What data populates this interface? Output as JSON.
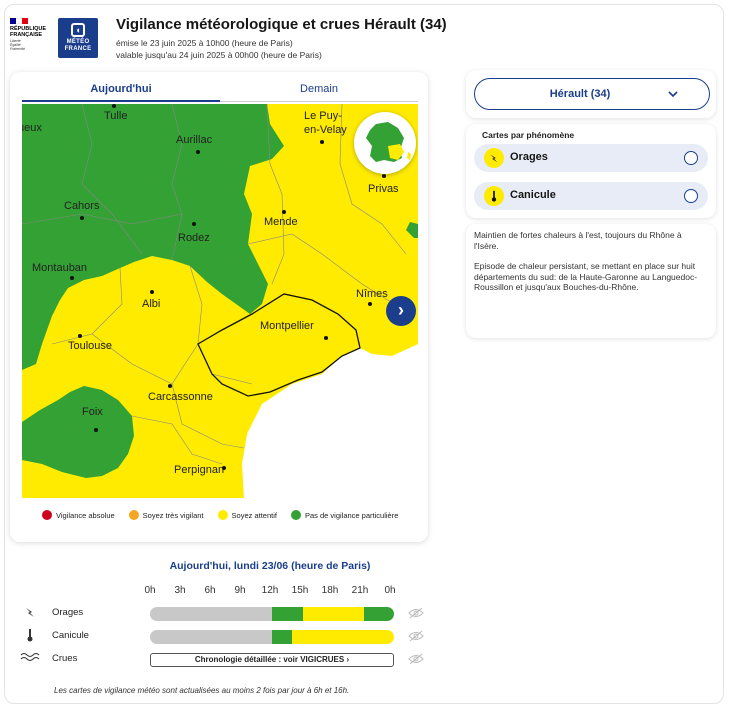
{
  "header": {
    "rf_line1": "RÉPUBLIQUE",
    "rf_line2": "FRANÇAISE",
    "rf_motto1": "Liberté",
    "rf_motto2": "Égalité",
    "rf_motto3": "Fraternité",
    "mf_line1": "MÉTÉO",
    "mf_line2": "FRANCE",
    "title": "Vigilance météorologique et crues Hérault (34)",
    "issued": "émise le 23 juin 2025 à 10h00 (heure de Paris)",
    "valid": "valable jusqu'au 24 juin 2025 à 00h00 (heure de Paris)"
  },
  "map": {
    "tabs": [
      {
        "label": "Aujourd'hui",
        "active": true
      },
      {
        "label": "Demain",
        "active": false
      }
    ],
    "cities": [
      {
        "name": "ueux"
      },
      {
        "name": "Tulle"
      },
      {
        "name": "Aurillac"
      },
      {
        "name": "Le Puy-"
      },
      {
        "name": "en-Velay"
      },
      {
        "name": "Privas"
      },
      {
        "name": "Cahors"
      },
      {
        "name": "Rodez"
      },
      {
        "name": "Mende"
      },
      {
        "name": "Montauban"
      },
      {
        "name": "Albi"
      },
      {
        "name": "Nîmes"
      },
      {
        "name": "Montpellier"
      },
      {
        "name": "Toulouse"
      },
      {
        "name": "Carcassonne"
      },
      {
        "name": "Foix"
      },
      {
        "name": "Perpignan"
      }
    ],
    "colors": {
      "green": "#33a134",
      "yellow": "#ffeb00",
      "orange": "#f5a623",
      "red": "#d0021b",
      "sea": "#ffffff"
    },
    "next_icon": "chevron-right-icon",
    "legend": [
      {
        "label": "Vigilance absolue",
        "color": "#d0021b"
      },
      {
        "label": "Soyez très vigilant",
        "color": "#f5a623"
      },
      {
        "label": "Soyez attentif",
        "color": "#ffeb00"
      },
      {
        "label": "Pas de vigilance particulière",
        "color": "#33a134"
      }
    ]
  },
  "timeline": {
    "title": "Aujourd'hui, lundi 23/06 (heure de Paris)",
    "hours": [
      "0h",
      "3h",
      "6h",
      "9h",
      "12h",
      "15h",
      "18h",
      "21h",
      "0h"
    ],
    "rows": [
      {
        "label": "Orages",
        "icon": "lightning-icon",
        "segments": [
          {
            "color": "#c8c8c8",
            "hours": 12
          },
          {
            "color": "#33a134",
            "hours": 3
          },
          {
            "color": "#ffeb00",
            "hours": 6
          },
          {
            "color": "#33a134",
            "hours": 3
          }
        ]
      },
      {
        "label": "Canicule",
        "icon": "thermometer-icon",
        "segments": [
          {
            "color": "#c8c8c8",
            "hours": 12
          },
          {
            "color": "#33a134",
            "hours": 2
          },
          {
            "color": "#ffeb00",
            "hours": 10
          }
        ]
      },
      {
        "label": "Crues",
        "icon": "waves-icon",
        "chrono_label": "Chronologie détaillée : voir  VIGICRUES  ›"
      }
    ]
  },
  "footnote": "Les cartes de vigilance météo sont actualisées au moins 2 fois par jour à 6h et 16h.",
  "sidebar": {
    "department": "Hérault (34)",
    "phen_title": "Cartes par phénomène",
    "phenomena": [
      {
        "label": "Orages",
        "icon": "lightning-icon"
      },
      {
        "label": "Canicule",
        "icon": "thermometer-icon"
      }
    ],
    "comment_p1": "Maintien de fortes chaleurs à l'est, toujours du Rhône à l'Isère.",
    "comment_p2": "Episode de chaleur persistant, se mettant en place sur huit départements du sud: de la Haute-Garonne au Languedoc-Roussillon et jusqu'aux Bouches-du-Rhône."
  }
}
